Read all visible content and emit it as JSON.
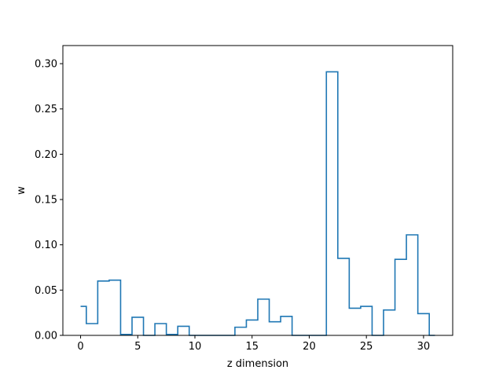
{
  "chart_data": {
    "type": "step",
    "title": "",
    "xlabel": "z dimension",
    "ylabel": "w",
    "xlim": [
      -1.55,
      32.55
    ],
    "ylim": [
      0.0,
      0.32
    ],
    "grid": false,
    "line_color": "#1f77b4",
    "x_ticks": [
      0,
      5,
      10,
      15,
      20,
      25,
      30
    ],
    "x_tick_labels": [
      "0",
      "5",
      "10",
      "15",
      "20",
      "25",
      "30"
    ],
    "y_ticks": [
      0.0,
      0.05,
      0.1,
      0.15,
      0.2,
      0.25,
      0.3
    ],
    "y_tick_labels": [
      "0.00",
      "0.05",
      "0.10",
      "0.15",
      "0.20",
      "0.25",
      "0.30"
    ],
    "x": [
      0,
      1,
      2,
      3,
      4,
      5,
      6,
      7,
      8,
      9,
      10,
      11,
      12,
      13,
      14,
      15,
      16,
      17,
      18,
      19,
      20,
      21,
      22,
      23,
      24,
      25,
      26,
      27,
      28,
      29,
      30,
      31
    ],
    "values": [
      0.032,
      0.013,
      0.06,
      0.061,
      0.001,
      0.02,
      0.0,
      0.013,
      0.001,
      0.01,
      0.0,
      0.0,
      0.0,
      0.0,
      0.009,
      0.017,
      0.04,
      0.015,
      0.021,
      0.0,
      0.0,
      0.0,
      0.291,
      0.085,
      0.03,
      0.032,
      0.0,
      0.028,
      0.084,
      0.111,
      0.024,
      0.0
    ]
  }
}
